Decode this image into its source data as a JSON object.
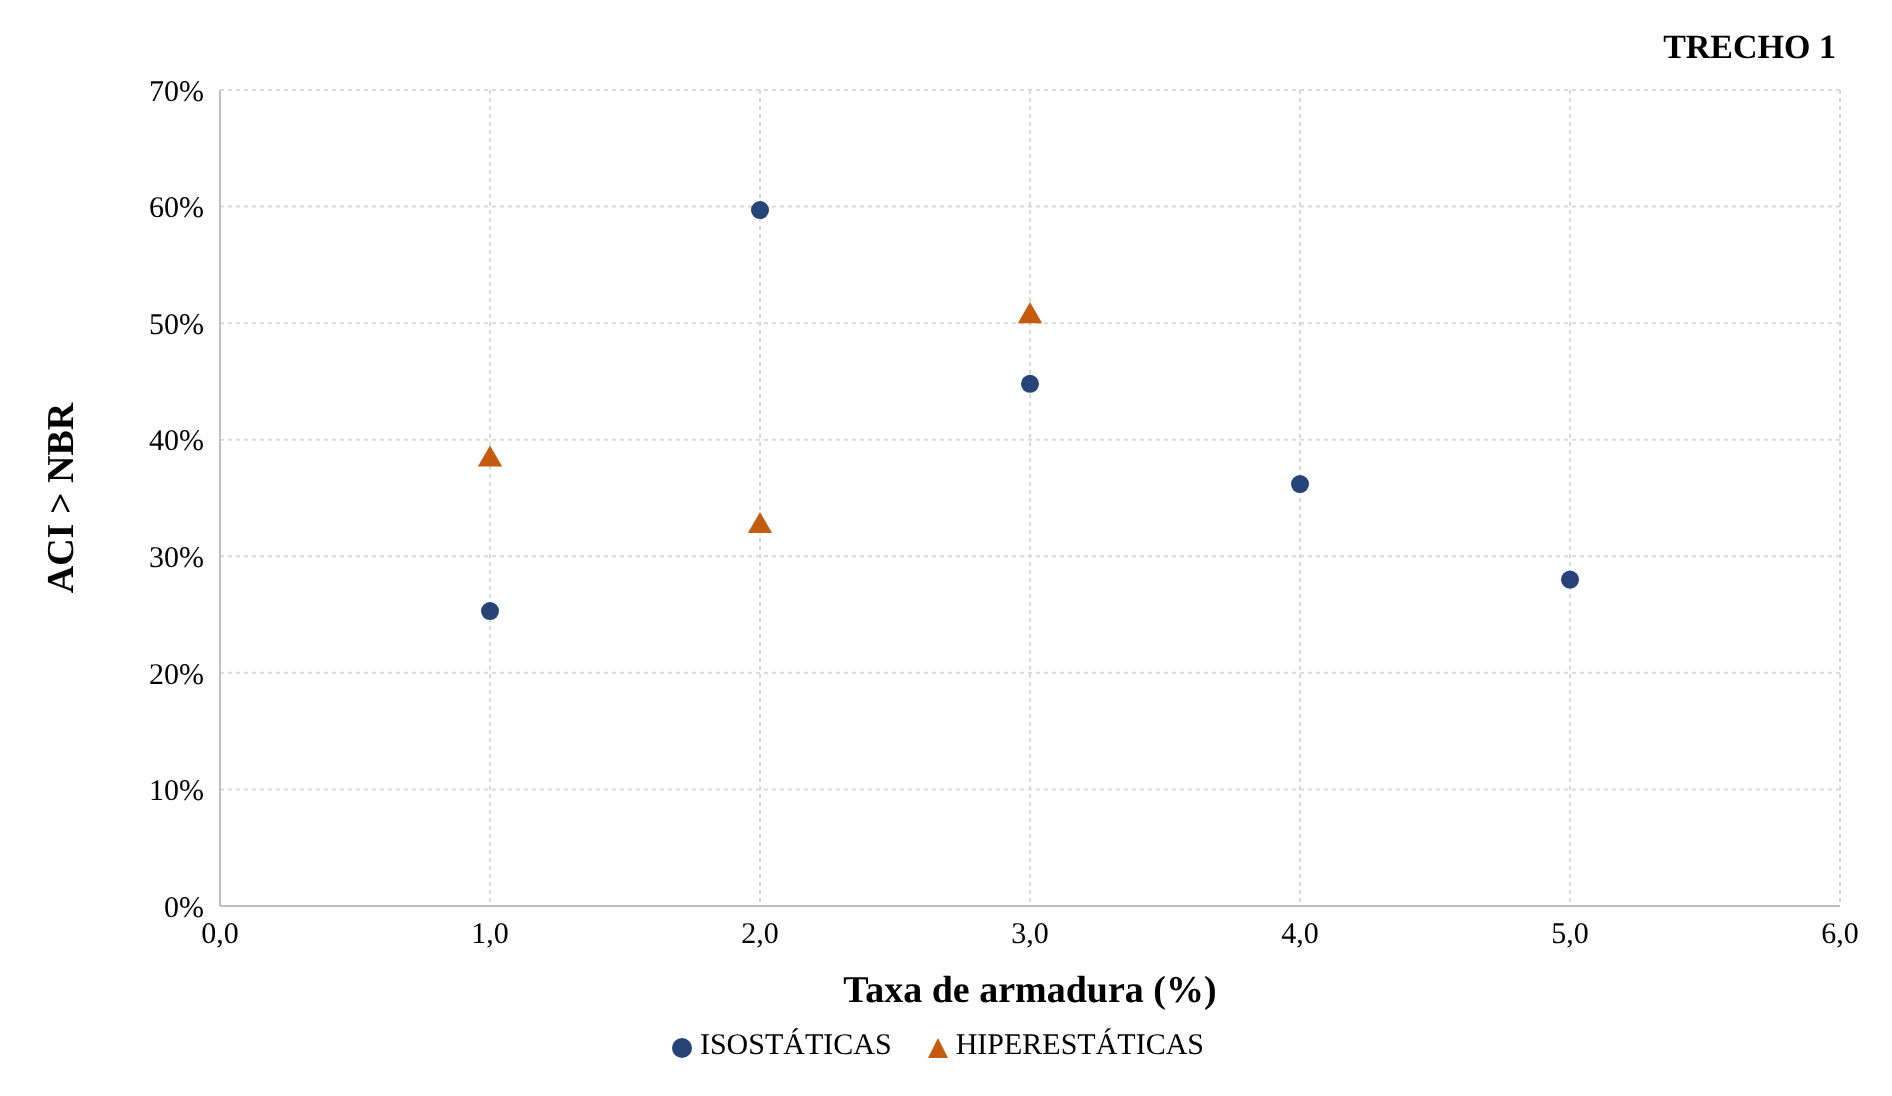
{
  "chart_data": {
    "type": "scatter",
    "title": "TRECHO 1",
    "xlabel": "Taxa de armadura (%)",
    "ylabel": "ACI > NBR",
    "xlim": [
      0,
      6
    ],
    "xticks": [
      {
        "value": 0,
        "label": "0,0"
      },
      {
        "value": 1,
        "label": "1,0"
      },
      {
        "value": 2,
        "label": "2,0"
      },
      {
        "value": 3,
        "label": "3,0"
      },
      {
        "value": 4,
        "label": "4,0"
      },
      {
        "value": 5,
        "label": "5,0"
      },
      {
        "value": 6,
        "label": "6,0"
      }
    ],
    "ylim": [
      0,
      70
    ],
    "yticks": [
      {
        "value": 0,
        "label": "0%"
      },
      {
        "value": 10,
        "label": "10%"
      },
      {
        "value": 20,
        "label": "20%"
      },
      {
        "value": 30,
        "label": "30%"
      },
      {
        "value": 40,
        "label": "40%"
      },
      {
        "value": 50,
        "label": "50%"
      },
      {
        "value": 60,
        "label": "60%"
      },
      {
        "value": 70,
        "label": "70%"
      }
    ],
    "grid": true,
    "legend": "bottom",
    "series": [
      {
        "name": "ISOSTÁTICAS",
        "color": "#264478",
        "marker": "circle",
        "x": [
          1,
          2,
          3,
          4,
          5
        ],
        "values": [
          25.3,
          59.7,
          44.8,
          36.2,
          28.0
        ]
      },
      {
        "name": "HIPERESTÁTICAS",
        "color": "#c55a11",
        "marker": "triangle",
        "x": [
          1,
          2,
          3
        ],
        "values": [
          38.3,
          32.6,
          50.6
        ]
      }
    ]
  }
}
